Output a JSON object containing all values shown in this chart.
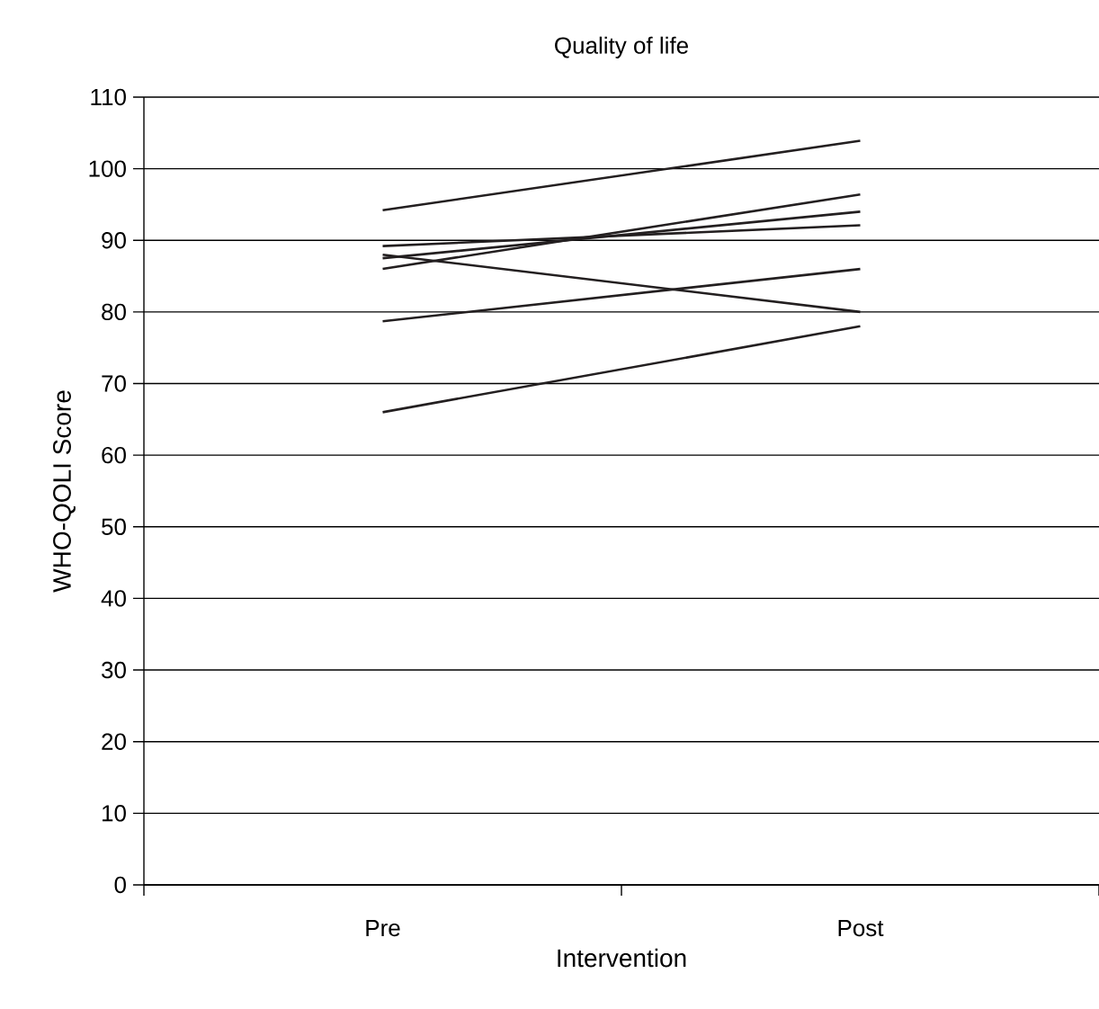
{
  "chart_data": {
    "type": "line",
    "title": "Quality of life",
    "xlabel": "Intervention",
    "ylabel": "WHO-QOLI Score",
    "categories": [
      "Pre",
      "Post"
    ],
    "series": [
      {
        "color": "#231f20",
        "values": [
          94.2,
          103.9
        ]
      },
      {
        "color": "#231f20",
        "values": [
          89.2,
          92.1
        ]
      },
      {
        "color": "#231f20",
        "values": [
          87.5,
          94
        ]
      },
      {
        "color": "#231f20",
        "values": [
          86,
          96.4
        ]
      },
      {
        "color": "#231f20",
        "values": [
          88,
          80
        ]
      },
      {
        "color": "#231f20",
        "values": [
          78.7,
          86
        ]
      },
      {
        "color": "#231f20",
        "values": [
          66,
          78
        ]
      }
    ],
    "ylim": [
      0,
      110
    ],
    "yticks": [
      0,
      10,
      20,
      30,
      40,
      50,
      60,
      70,
      80,
      90,
      100,
      110
    ],
    "grid": "y",
    "marker": "none",
    "line_style": "solid"
  }
}
